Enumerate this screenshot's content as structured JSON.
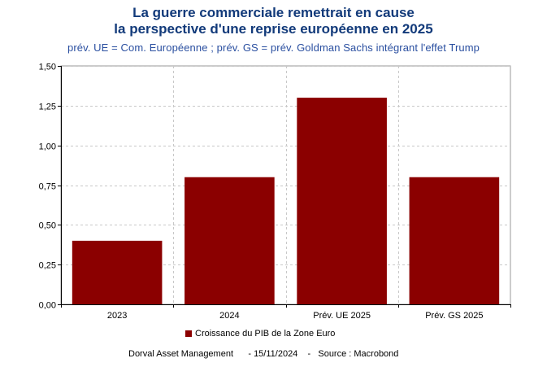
{
  "header": {
    "title_line1": "La guerre commerciale remettrait en cause",
    "title_line2": "la perspective d'une reprise européenne en 2025",
    "subtitle": "prév. UE = Com. Européenne ; prév. GS = prév. Goldman Sachs intégrant l'effet Trump"
  },
  "legend": {
    "label": "Croissance du PIB de la Zone Euro"
  },
  "footer": {
    "text": "Dorval Asset Management      - 15/11/2024    -   Source : Macrobond"
  },
  "colors": {
    "bar": "#8b0000",
    "title": "#123a7a",
    "subtitle": "#2a4fa0",
    "grid": "#c8c8c8"
  },
  "chart_data": {
    "type": "bar",
    "categories": [
      "2023",
      "2024",
      "Prév. UE 2025",
      "Prév. GS 2025"
    ],
    "series": [
      {
        "name": "Croissance du PIB de la Zone Euro",
        "values": [
          0.4,
          0.8,
          1.3,
          0.8
        ]
      }
    ],
    "ylim": [
      0,
      1.5
    ],
    "yticks": [
      0,
      0.25,
      0.5,
      0.75,
      1.0,
      1.25,
      1.5
    ],
    "ytick_labels": [
      "0,00",
      "0,25",
      "0,50",
      "0,75",
      "1,00",
      "1,25",
      "1,50"
    ],
    "grid": true,
    "legend_position": "bottom"
  }
}
